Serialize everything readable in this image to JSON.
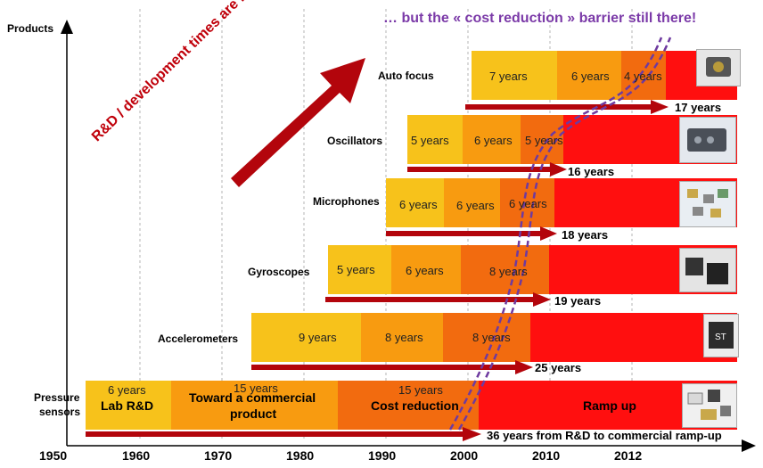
{
  "axis": {
    "y_title": "Products",
    "x_ticks": [
      "1950",
      "1960",
      "1970",
      "1980",
      "1990",
      "2000",
      "2010",
      "2012"
    ]
  },
  "headline": "… but the « cost reduction » barrier still there!",
  "rd_arrow_text": "R&D / development times are reduced …",
  "colors": {
    "phase1": "#f7c21b",
    "phase2": "#f89b10",
    "phase3": "#f26b0f",
    "rampup": "#ff0f0f",
    "arrow": "#b3050c",
    "barrier": "#6e3aa0"
  },
  "products": [
    {
      "name": "Auto focus",
      "segments": [
        "7 years",
        "6 years",
        "4 years"
      ],
      "total": "17 years",
      "icon": "camera-module-icon"
    },
    {
      "name": "Oscillators",
      "segments": [
        "5 years",
        "6 years",
        "5 years"
      ],
      "total": "16 years",
      "icon": "oscillator-chip-icon"
    },
    {
      "name": "Microphones",
      "segments": [
        "6 years",
        "6 years",
        "6 years"
      ],
      "total": "18 years",
      "icon": "microphone-chips-icon"
    },
    {
      "name": "Gyroscopes",
      "segments": [
        "5 years",
        "6 years",
        "8 years"
      ],
      "total": "19 years",
      "icon": "gyroscope-chip-icon"
    },
    {
      "name": "Accelerometers",
      "segments": [
        "9 years",
        "8 years",
        "8 years"
      ],
      "total": "25 years",
      "icon": "accelerometer-chip-icon"
    }
  ],
  "pressure": {
    "name_line1": "Pressure",
    "name_line2": "sensors",
    "seg1_dur": "6 years",
    "seg1_label": "Lab R&D",
    "seg2_dur": "15 years",
    "seg2_label_line1": "Toward a commercial",
    "seg2_label_line2": "product",
    "seg3_dur": "15 years",
    "seg3_label": "Cost reduction",
    "seg4_label": "Ramp up",
    "total": "36 years from R&D to commercial ramp-up",
    "icon": "pressure-sensor-chips-icon"
  }
}
